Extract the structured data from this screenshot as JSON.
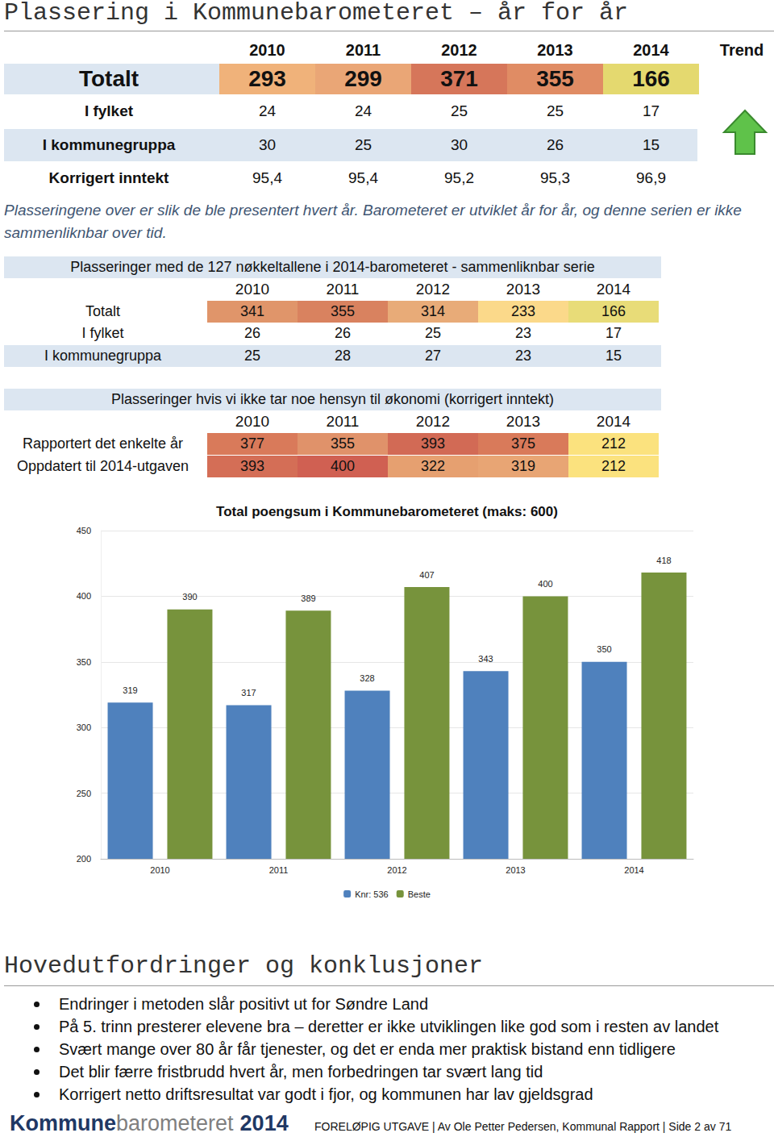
{
  "header": {
    "title": "Plassering i Kommunebarometeret – år for år"
  },
  "table1": {
    "years": [
      "2010",
      "2011",
      "2012",
      "2013",
      "2014"
    ],
    "trend": "Trend",
    "rows": [
      {
        "label": "Totalt",
        "values": [
          293,
          299,
          371,
          355,
          166
        ],
        "colors": [
          "#f0b27a",
          "#eaa676",
          "#d6765a",
          "#e08c64",
          "#e4d96f"
        ]
      },
      {
        "label": "I fylket",
        "values": [
          24,
          24,
          25,
          25,
          17
        ]
      },
      {
        "label": "I kommunegruppa",
        "values": [
          30,
          25,
          30,
          26,
          15
        ]
      },
      {
        "label": "Korrigert inntekt",
        "values": [
          "95,4",
          "95,4",
          "95,2",
          "95,3",
          "96,9"
        ]
      }
    ]
  },
  "note": "Plasseringene over er slik de ble presentert hvert år. Barometeret er utviklet år for år, og denne serien er ikke sammenliknbar over tid.",
  "table2": {
    "title": "Plasseringer med de 127 nøkkeltallene i 2014-barometeret - sammenliknbar serie",
    "years": [
      "2010",
      "2011",
      "2012",
      "2013",
      "2014"
    ],
    "rows": [
      {
        "label": "Totalt",
        "values": [
          341,
          355,
          314,
          233,
          166
        ],
        "colors": [
          "#e0956a",
          "#d9825f",
          "#e8ab78",
          "#fbd98a",
          "#e8dc78"
        ]
      },
      {
        "label": "I fylket",
        "values": [
          26,
          26,
          25,
          23,
          17
        ]
      },
      {
        "label": "I kommunegruppa",
        "values": [
          25,
          28,
          27,
          23,
          15
        ]
      }
    ]
  },
  "table3": {
    "title": "Plasseringer hvis vi ikke tar noe hensyn til økonomi (korrigert inntekt)",
    "years": [
      "2010",
      "2011",
      "2012",
      "2013",
      "2014"
    ],
    "rows": [
      {
        "label": "Rapportert det enkelte år",
        "values": [
          377,
          355,
          393,
          375,
          212
        ],
        "colors": [
          "#d97a5a",
          "#e0926a",
          "#d26a55",
          "#d97a5a",
          "#fbe27e"
        ]
      },
      {
        "label": "Oppdatert til 2014-utgaven",
        "values": [
          393,
          400,
          322,
          319,
          212
        ],
        "colors": [
          "#d46e56",
          "#d06052",
          "#e6a070",
          "#e8a574",
          "#fbe27e"
        ]
      }
    ]
  },
  "chart_data": {
    "type": "bar",
    "title": "Total poengsum i Kommunebarometeret (maks: 600)",
    "categories": [
      "2010",
      "2011",
      "2012",
      "2013",
      "2014"
    ],
    "series": [
      {
        "name": "Knr: 536",
        "color": "#4f81bd",
        "values": [
          319,
          317,
          328,
          343,
          350
        ]
      },
      {
        "name": "Beste",
        "color": "#77933c",
        "values": [
          390,
          389,
          407,
          400,
          418
        ]
      }
    ],
    "ylim": [
      200,
      450
    ],
    "yticks": [
      200,
      250,
      300,
      350,
      400,
      450
    ],
    "grid": true,
    "data_labels": true,
    "legend": "bottom"
  },
  "conclusions": {
    "title": "Hovedutfordringer og konklusjoner",
    "bullets": [
      "Endringer i metoden slår positivt ut for Søndre Land",
      "På 5. trinn presterer elevene bra – deretter er ikke utviklingen like god som i resten av landet",
      "Svært mange over 80 år får tjenester, og det er enda mer praktisk bistand enn tidligere",
      "Det blir færre fristbrudd hvert år, men forbedringen tar svært lang tid",
      "Korrigert netto driftsresultat var godt i fjor, og kommunen har lav gjeldsgrad"
    ]
  },
  "footer": {
    "logo": [
      "Kommune",
      "barometeret",
      "2014"
    ],
    "text": "FORELØPIG UTGAVE | Av Ole Petter Pedersen, Kommunal Rapport | Side 2 av 71"
  }
}
